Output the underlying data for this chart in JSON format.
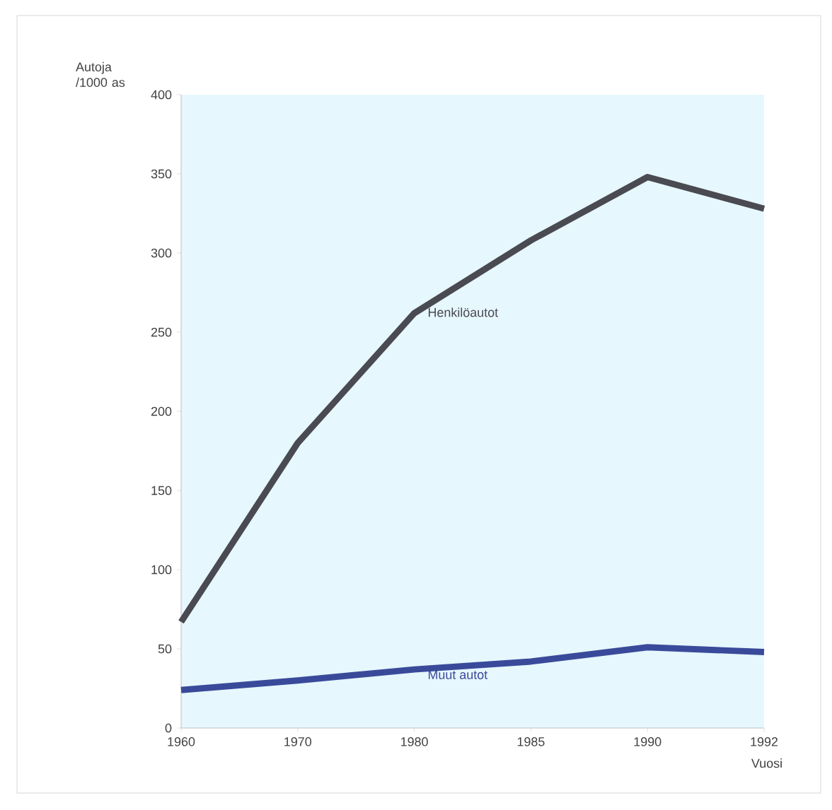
{
  "chart_data": {
    "type": "line",
    "ylabel": "Autoja /1000 as",
    "xlabel": "Vuosi",
    "categories": [
      "1960",
      "1970",
      "1980",
      "1985",
      "1990",
      "1992"
    ],
    "series": [
      {
        "name": "Henkilöautot",
        "color": "#4a4a52",
        "values": [
          67,
          180,
          262,
          308,
          348,
          328
        ]
      },
      {
        "name": "Muut autot",
        "color": "#3a4a9a",
        "values": [
          24,
          30,
          37,
          42,
          51,
          48
        ]
      }
    ],
    "ylim": [
      0,
      400
    ],
    "yticks": [
      0,
      50,
      100,
      150,
      200,
      250,
      300,
      350,
      400
    ],
    "grid": false,
    "marker": "none",
    "line_style": "solid"
  }
}
